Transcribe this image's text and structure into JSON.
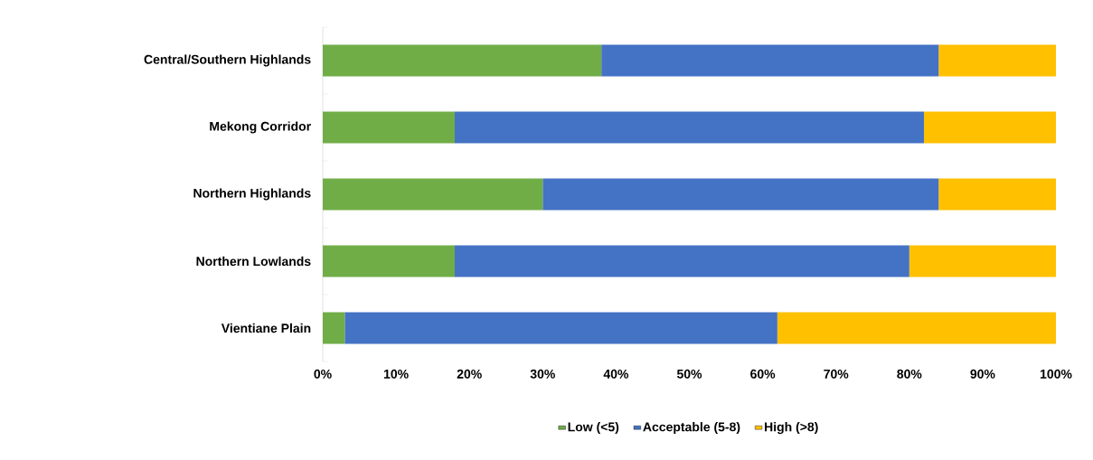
{
  "chart_data": {
    "type": "bar",
    "orientation": "horizontal",
    "stacked": true,
    "categories": [
      "Central/Southern Highlands",
      "Mekong Corridor",
      "Northern Highlands",
      "Northern Lowlands",
      "Vientiane Plain"
    ],
    "series": [
      {
        "name": "Low (<5)",
        "color": "#70ad47",
        "values": [
          38,
          18,
          30,
          18,
          3
        ]
      },
      {
        "name": "Acceptable (5-8)",
        "color": "#4472c4",
        "values": [
          46,
          64,
          54,
          62,
          59
        ]
      },
      {
        "name": "High (>8)",
        "color": "#ffc000",
        "values": [
          16,
          18,
          16,
          20,
          38
        ]
      }
    ],
    "xlim": [
      0,
      100
    ],
    "xticks": [
      {
        "value": 0,
        "label": "0%"
      },
      {
        "value": 10,
        "label": "10%"
      },
      {
        "value": 20,
        "label": "20%"
      },
      {
        "value": 30,
        "label": "30%"
      },
      {
        "value": 40,
        "label": "40%"
      },
      {
        "value": 50,
        "label": "50%"
      },
      {
        "value": 60,
        "label": "60%"
      },
      {
        "value": 70,
        "label": "70%"
      },
      {
        "value": 80,
        "label": "80%"
      },
      {
        "value": 90,
        "label": "90%"
      },
      {
        "value": 100,
        "label": "100%"
      }
    ],
    "grid": false,
    "legend": "bottom"
  }
}
